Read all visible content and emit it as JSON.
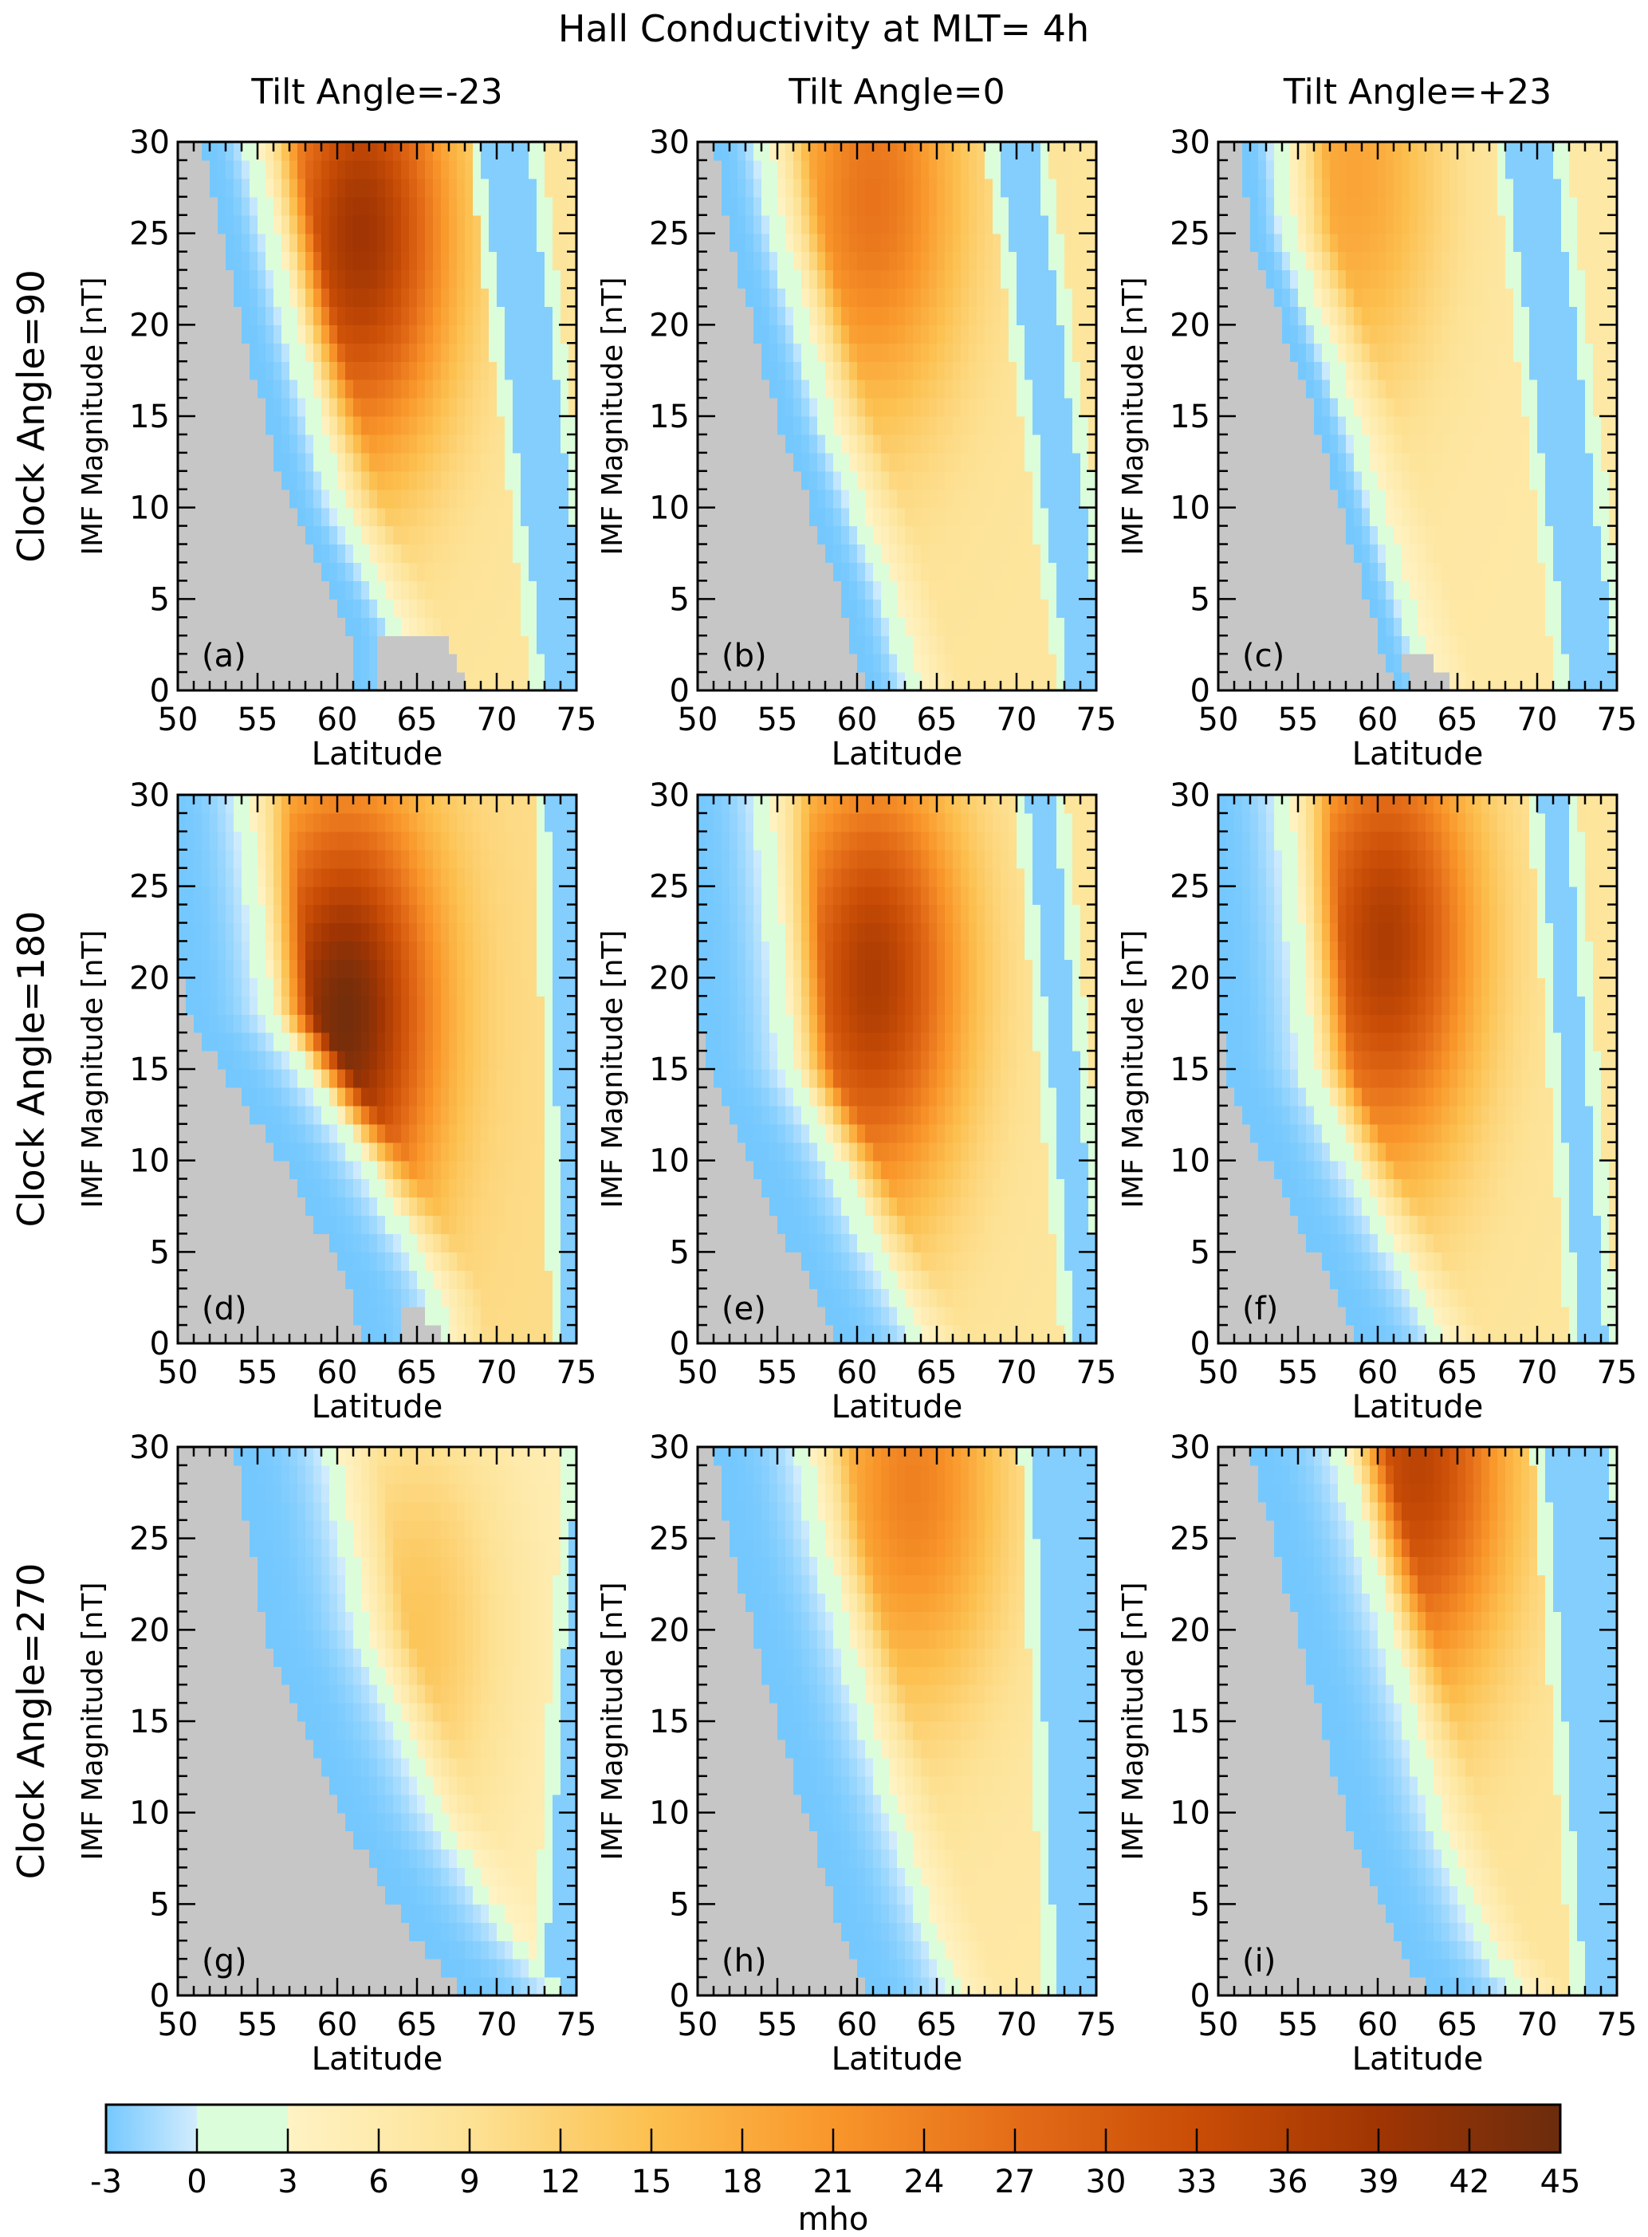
{
  "chart_data": {
    "type": "heatmap",
    "title": "Hall Conductivity at MLT= 4h",
    "column_titles": [
      "Tilt Angle=-23",
      "Tilt Angle=0",
      "Tilt Angle=+23"
    ],
    "row_titles": [
      "Clock Angle=90",
      "Clock Angle=180",
      "Clock Angle=270"
    ],
    "xlabel": "Latitude",
    "ylabel": "IMF Magnitude [nT]",
    "xlim": [
      50,
      75
    ],
    "ylim": [
      0,
      30
    ],
    "x_ticks": [
      50,
      55,
      60,
      65,
      70,
      75
    ],
    "y_ticks": [
      0,
      5,
      10,
      15,
      20,
      25,
      30
    ],
    "x_step": 0.5,
    "y_step": 1,
    "colorbar": {
      "label": "mho",
      "range": [
        -3,
        45
      ],
      "ticks": [
        -3,
        0,
        3,
        6,
        9,
        12,
        15,
        18,
        21,
        24,
        27,
        30,
        33,
        36,
        39,
        42,
        45
      ],
      "orientation": "horizontal",
      "placement": "bottom",
      "stops": [
        {
          "v": -3,
          "c": "#74c8fe"
        },
        {
          "v": 0,
          "c": "#d2ecfd"
        },
        {
          "v": 0.01,
          "c": "#dbfdda"
        },
        {
          "v": 3,
          "c": "#dbfdda"
        },
        {
          "v": 3.01,
          "c": "#fff3c4"
        },
        {
          "v": 9,
          "c": "#fde295"
        },
        {
          "v": 15,
          "c": "#fcc04f"
        },
        {
          "v": 21,
          "c": "#f9962a"
        },
        {
          "v": 27,
          "c": "#e46c18"
        },
        {
          "v": 33,
          "c": "#c94d06"
        },
        {
          "v": 39,
          "c": "#a03503"
        },
        {
          "v": 45,
          "c": "#6b2c0d"
        }
      ]
    },
    "missing_color": "#c6c6c6",
    "panels": [
      {
        "label": "(a)",
        "row": 0,
        "col": 0,
        "mask_edge": [
          [
            0,
            61
          ],
          [
            3,
            61
          ],
          [
            10,
            57
          ],
          [
            20,
            54
          ],
          [
            30,
            51.5
          ]
        ],
        "mask_bottom": [
          [
            0,
            68.5
          ],
          [
            2.5,
            67
          ]
        ],
        "blue_width": 2.5,
        "peak": {
          "lat": 61.5,
          "imf": 25,
          "value": 39
        },
        "floor": 8,
        "right_band": {
          "lat_at_0": 74.5,
          "lat_at_30": 70.5,
          "width": 1.5
        }
      },
      {
        "label": "(b)",
        "row": 0,
        "col": 1,
        "mask_edge": [
          [
            0,
            60.5
          ],
          [
            5,
            59
          ],
          [
            15,
            55
          ],
          [
            25,
            52
          ],
          [
            30,
            51
          ]
        ],
        "mask_bottom": [],
        "blue_width": 2.5,
        "peak": {
          "lat": 61,
          "imf": 27,
          "value": 26
        },
        "floor": 8,
        "right_band": {
          "lat_at_0": 74.5,
          "lat_at_30": 70,
          "width": 1.2
        }
      },
      {
        "label": "(c)",
        "row": 0,
        "col": 2,
        "mask_edge": [
          [
            0,
            61
          ],
          [
            3,
            60
          ],
          [
            15,
            56
          ],
          [
            25,
            52
          ],
          [
            30,
            51.5
          ]
        ],
        "mask_bottom": [
          [
            0,
            65
          ],
          [
            1.5,
            63.5
          ]
        ],
        "blue_width": 1.8,
        "peak": {
          "lat": 58.5,
          "imf": 28,
          "value": 19
        },
        "floor": 7,
        "right_band": {
          "lat_at_0": 73.5,
          "lat_at_30": 69.5,
          "width": 1.5
        }
      },
      {
        "label": "(d)",
        "row": 1,
        "col": 0,
        "mask_edge": [
          [
            0,
            61.5
          ],
          [
            3,
            61
          ],
          [
            10,
            56.5
          ],
          [
            18,
            50.5
          ],
          [
            30,
            49
          ]
        ],
        "mask_bottom": [
          [
            0,
            67
          ],
          [
            2,
            65
          ]
        ],
        "blue_width": 4.5,
        "peak": {
          "lat": 60.5,
          "imf": 18,
          "value": 44
        },
        "floor": 10,
        "right_band": {
          "lat_at_0": 75,
          "lat_at_30": 74,
          "width": 0.8
        }
      },
      {
        "label": "(e)",
        "row": 1,
        "col": 1,
        "mask_edge": [
          [
            0,
            59
          ],
          [
            5,
            56
          ],
          [
            10,
            53.5
          ],
          [
            15,
            50.5
          ],
          [
            30,
            49
          ]
        ],
        "mask_bottom": [],
        "blue_width": 4.5,
        "peak": {
          "lat": 61,
          "imf": 20,
          "value": 37
        },
        "floor": 8,
        "right_band": {
          "lat_at_0": 74.5,
          "lat_at_30": 71.5,
          "width": 0.8
        }
      },
      {
        "label": "(f)",
        "row": 1,
        "col": 2,
        "mask_edge": [
          [
            0,
            59
          ],
          [
            5,
            56
          ],
          [
            10,
            53
          ],
          [
            15,
            50.5
          ],
          [
            30,
            49
          ]
        ],
        "mask_bottom": [
          [
            0,
            63
          ]
        ],
        "blue_width": 4.5,
        "peak": {
          "lat": 60.5,
          "imf": 22,
          "value": 37
        },
        "floor": 8,
        "right_band": {
          "lat_at_0": 73.5,
          "lat_at_30": 71,
          "width": 0.8
        }
      },
      {
        "label": "(g)",
        "row": 2,
        "col": 0,
        "mask_edge": [
          [
            0,
            68
          ],
          [
            3,
            65
          ],
          [
            10,
            60
          ],
          [
            20,
            55.5
          ],
          [
            30,
            53.5
          ]
        ],
        "mask_bottom": [],
        "blue_width": 5.5,
        "peak": {
          "lat": 65,
          "imf": 20,
          "value": 14
        },
        "floor": 5,
        "right_band": {
          "lat_at_0": 74,
          "lat_at_30": 76,
          "width": 1
        }
      },
      {
        "label": "(h)",
        "row": 2,
        "col": 1,
        "mask_edge": [
          [
            0,
            60.5
          ],
          [
            5,
            58.5
          ],
          [
            15,
            55
          ],
          [
            25,
            52
          ],
          [
            30,
            51
          ]
        ],
        "mask_bottom": [],
        "blue_width": 5,
        "peak": {
          "lat": 63.5,
          "imf": 28,
          "value": 24
        },
        "floor": 7,
        "right_band": {
          "lat_at_0": 74.5,
          "lat_at_30": 73,
          "width": 2
        }
      },
      {
        "label": "(i)",
        "row": 2,
        "col": 2,
        "mask_edge": [
          [
            0,
            63.5
          ],
          [
            3,
            61
          ],
          [
            10,
            58
          ],
          [
            20,
            55
          ],
          [
            30,
            52
          ]
        ],
        "mask_bottom": [],
        "blue_width": 5,
        "peak": {
          "lat": 62.5,
          "imf": 29,
          "value": 35
        },
        "floor": 8,
        "right_band": {
          "lat_at_0": 75,
          "lat_at_30": 72.5,
          "width": 2
        }
      }
    ]
  }
}
